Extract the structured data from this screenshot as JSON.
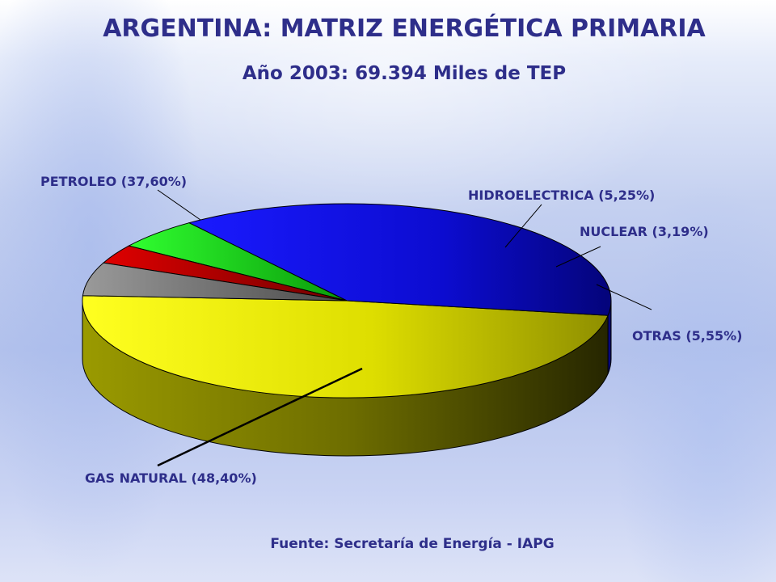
{
  "slide": {
    "title": "ARGENTINA: MATRIZ ENERGÉTICA PRIMARIA",
    "subtitle": "Año 2003: 69.394 Miles de TEP",
    "source": "Fuente: Secretaría de Energía -  IAPG"
  },
  "chart_data": {
    "type": "pie",
    "style": "3d",
    "unit": "%",
    "slices": [
      {
        "name": "GAS NATURAL",
        "value": 48.4,
        "label": "GAS NATURAL (48,40%)",
        "color": "#e8e800"
      },
      {
        "name": "PETROLEO",
        "value": 37.6,
        "label": "PETROLEO (37,60%)",
        "color": "#1414e6"
      },
      {
        "name": "HIDROELECTRICA",
        "value": 5.25,
        "label": "HIDROELECTRICA (5,25%)",
        "color": "#10d010"
      },
      {
        "name": "NUCLEAR",
        "value": 3.19,
        "label": "NUCLEAR (3,19%)",
        "color": "#c00000"
      },
      {
        "name": "OTRAS",
        "value": 5.55,
        "label": "OTRAS (5,55%)",
        "color": "#777777"
      }
    ]
  }
}
